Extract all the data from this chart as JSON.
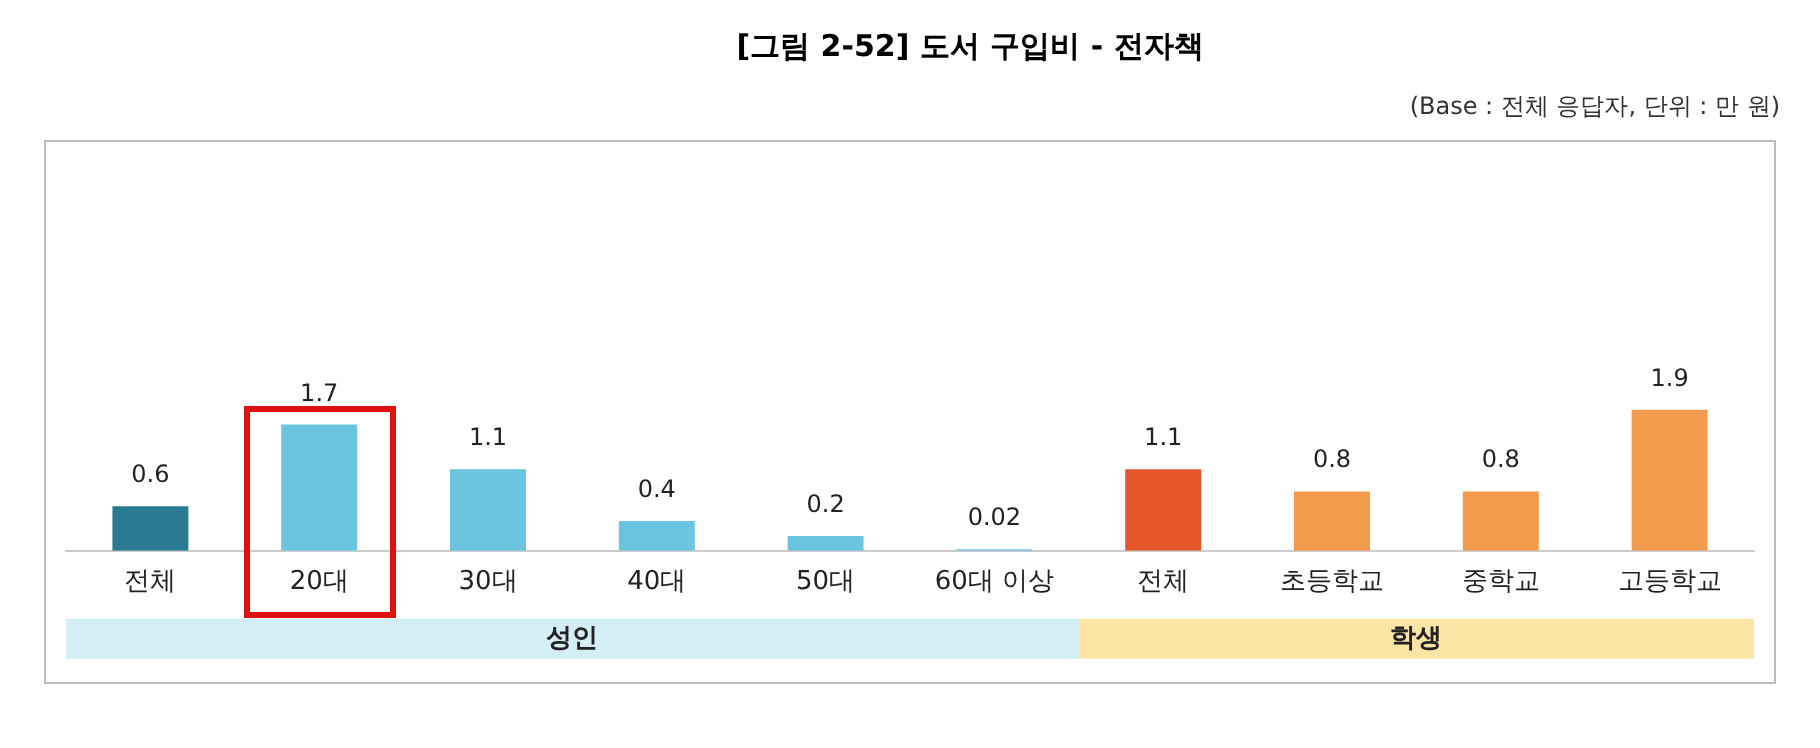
{
  "chart_data": {
    "type": "bar",
    "title": "[그림 2-52] 도서 구입비 - 전자책",
    "subtitle": "(Base : 전체 응답자, 단위 : 만 원)",
    "categories": [
      "전체",
      "20대",
      "30대",
      "40대",
      "50대",
      "60대 이상",
      "전체",
      "초등학교",
      "중학교",
      "고등학교"
    ],
    "series": [
      {
        "name": "성인",
        "colors": [
          "#2a7a94",
          "#6cc5e0",
          "#6cc5e0",
          "#6cc5e0",
          "#6cc5e0",
          "#6cc5e0",
          null,
          null,
          null,
          null
        ],
        "values": [
          0.6,
          1.7,
          1.1,
          0.4,
          0.2,
          0.02,
          null,
          null,
          null,
          null
        ]
      },
      {
        "name": "학생",
        "colors": [
          null,
          null,
          null,
          null,
          null,
          null,
          "#e5562a",
          "#f29b4c",
          "#f29b4c",
          "#f29b4c"
        ],
        "values": [
          null,
          null,
          null,
          null,
          null,
          null,
          1.1,
          0.8,
          0.8,
          1.9
        ]
      }
    ],
    "data_labels": true,
    "legend": false,
    "grid": false
  }
}
